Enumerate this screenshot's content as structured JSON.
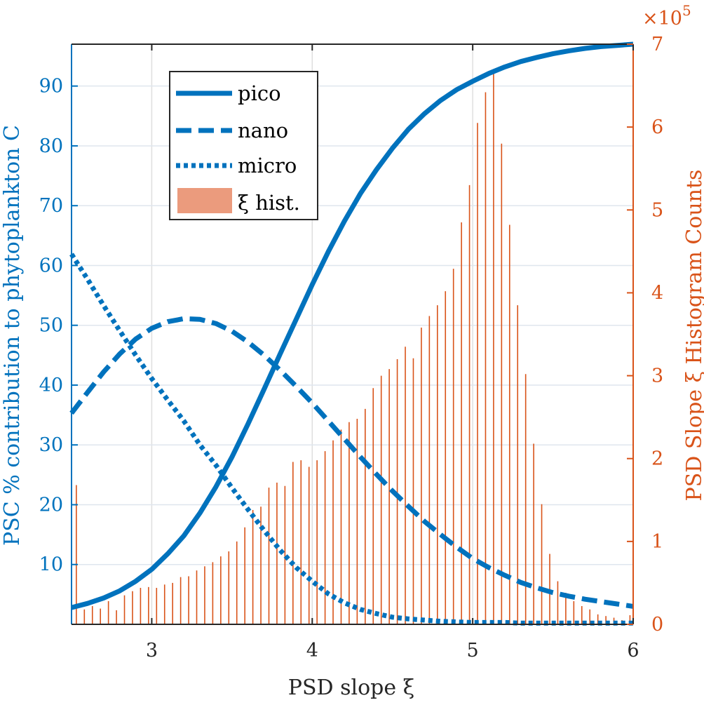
{
  "chart_data": {
    "type": "line",
    "xlabel": "PSD slope ξ",
    "ylabel_left": "PSC % contribution to phytoplankton C",
    "ylabel_right": "PSD Slope ξ Histogram Counts",
    "right_axis_exponent": {
      "base": "×10",
      "power": "5"
    },
    "xlim": [
      2.5,
      6
    ],
    "ylim_left": [
      0,
      97
    ],
    "ylim_right": [
      0,
      7
    ],
    "x_ticks": [
      "3",
      "4",
      "5",
      "6"
    ],
    "x_tick_values": [
      3,
      4,
      5,
      6
    ],
    "y_left_ticks": [
      "10",
      "20",
      "30",
      "40",
      "50",
      "60",
      "70",
      "80",
      "90"
    ],
    "y_left_tick_values": [
      10,
      20,
      30,
      40,
      50,
      60,
      70,
      80,
      90
    ],
    "y_right_ticks": [
      "0",
      "1",
      "2",
      "3",
      "4",
      "5",
      "6",
      "7"
    ],
    "y_right_tick_values": [
      0,
      1,
      2,
      3,
      4,
      5,
      6,
      7
    ],
    "grid": true,
    "legend_placement": "top-left",
    "colors": {
      "line": "#0072bd",
      "hist": "#d95319",
      "hist_legend": "#eb9b7d"
    },
    "x": [
      2.5,
      2.6,
      2.7,
      2.8,
      2.9,
      3.0,
      3.1,
      3.2,
      3.3,
      3.4,
      3.5,
      3.6,
      3.7,
      3.8,
      3.9,
      4.0,
      4.1,
      4.2,
      4.3,
      4.4,
      4.5,
      4.6,
      4.7,
      4.8,
      4.9,
      5.0,
      5.1,
      5.2,
      5.3,
      5.4,
      5.5,
      5.6,
      5.7,
      5.8,
      5.9,
      6.0
    ],
    "series": [
      {
        "name": "pico",
        "style": "solid",
        "values": [
          2.8,
          3.5,
          4.4,
          5.6,
          7.2,
          9.2,
          11.8,
          14.8,
          18.6,
          23.0,
          28.0,
          33.5,
          39.3,
          45.2,
          51.0,
          56.8,
          62.3,
          67.4,
          72.0,
          76.0,
          79.6,
          82.8,
          85.4,
          87.6,
          89.4,
          90.8,
          92.1,
          93.2,
          94.1,
          94.8,
          95.4,
          95.9,
          96.3,
          96.6,
          96.8,
          97.0
        ]
      },
      {
        "name": "nano",
        "style": "dashed",
        "values": [
          35.3,
          38.8,
          42.2,
          45.2,
          47.7,
          49.5,
          50.6,
          51.1,
          51.0,
          50.3,
          49.0,
          47.2,
          45.0,
          42.5,
          39.8,
          37.0,
          34.0,
          31.0,
          28.0,
          25.1,
          22.3,
          19.7,
          17.2,
          15.0,
          12.9,
          11.0,
          9.5,
          8.2,
          7.0,
          6.1,
          5.3,
          4.7,
          4.2,
          3.8,
          3.4,
          3.0
        ]
      },
      {
        "name": "micro",
        "style": "dotted",
        "values": [
          61.9,
          57.7,
          53.3,
          49.1,
          45.0,
          41.1,
          37.5,
          34.0,
          30.0,
          26.6,
          22.8,
          19.2,
          15.7,
          12.4,
          9.5,
          7.2,
          5.1,
          3.6,
          2.5,
          1.8,
          1.2,
          0.9,
          0.7,
          0.5,
          0.4,
          0.3,
          0.3,
          0.3,
          0.2,
          0.2,
          0.2,
          0.2,
          0.2,
          0.2,
          0.2,
          0.2
        ]
      }
    ],
    "histogram": {
      "name": "ξ hist.",
      "x": [
        2.53,
        2.58,
        2.63,
        2.68,
        2.73,
        2.78,
        2.83,
        2.88,
        2.93,
        2.98,
        3.03,
        3.08,
        3.13,
        3.18,
        3.23,
        3.28,
        3.33,
        3.38,
        3.43,
        3.48,
        3.53,
        3.58,
        3.63,
        3.68,
        3.73,
        3.78,
        3.83,
        3.88,
        3.93,
        3.98,
        4.03,
        4.08,
        4.13,
        4.18,
        4.23,
        4.28,
        4.33,
        4.38,
        4.43,
        4.48,
        4.53,
        4.58,
        4.63,
        4.68,
        4.73,
        4.78,
        4.83,
        4.88,
        4.93,
        4.98,
        5.03,
        5.08,
        5.13,
        5.18,
        5.23,
        5.28,
        5.33,
        5.38,
        5.43,
        5.48,
        5.53,
        5.58,
        5.63,
        5.68,
        5.73,
        5.78,
        5.83,
        5.88,
        5.93,
        5.98
      ],
      "values": [
        1.68,
        0.18,
        0.22,
        0.19,
        0.28,
        0.17,
        0.35,
        0.4,
        0.44,
        0.45,
        0.44,
        0.48,
        0.5,
        0.57,
        0.58,
        0.65,
        0.7,
        0.75,
        0.82,
        0.88,
        1.0,
        1.17,
        1.38,
        1.42,
        1.65,
        1.71,
        1.67,
        1.96,
        1.98,
        1.9,
        1.98,
        2.09,
        2.22,
        2.35,
        2.44,
        2.48,
        2.6,
        2.85,
        3.0,
        3.08,
        3.2,
        3.35,
        3.21,
        3.58,
        3.72,
        3.85,
        4.02,
        4.29,
        4.85,
        5.3,
        6.05,
        6.42,
        6.68,
        5.8,
        4.82,
        3.85,
        3.02,
        2.18,
        1.45,
        0.85,
        0.52,
        0.38,
        0.28,
        0.22,
        0.18,
        0.12,
        0.1,
        0.08,
        0.05,
        0.11
      ]
    }
  }
}
